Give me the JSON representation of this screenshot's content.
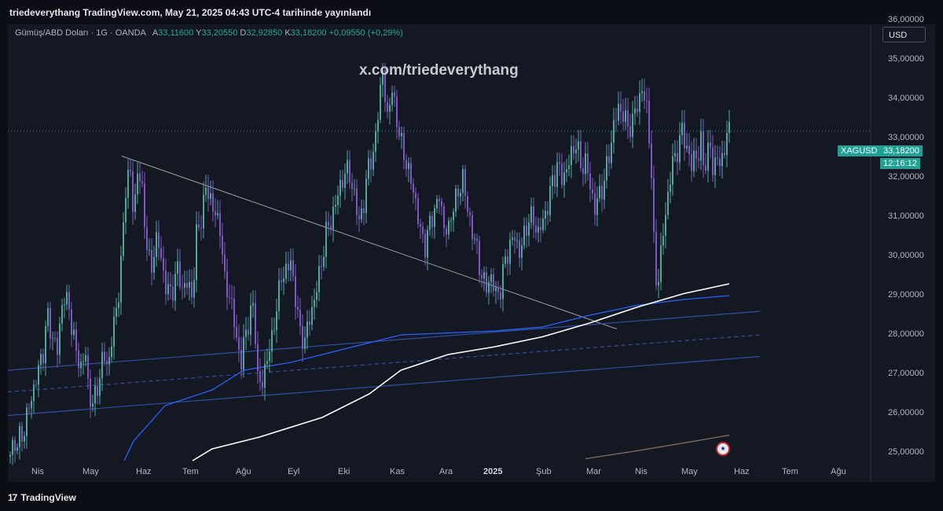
{
  "header": {
    "published_text": "triedeverythang TradingView.com, May 21, 2025 04:43 UTC-4 tarihinde yayınlandı"
  },
  "legend": {
    "title": "Gümüş/ABD Doları · 1G · OANDA",
    "open_key": "A",
    "open": "33,11600",
    "high_key": "Y",
    "high": "33,20550",
    "low_key": "D",
    "low": "32,92850",
    "close_key": "K",
    "close": "33,18200",
    "change": "+0,09550 (+0,29%)"
  },
  "currency_button": "USD",
  "watermark": "x.com/triedeverythang",
  "symbol_tag": "XAGUSD",
  "price_tag": {
    "price": "33,18200",
    "countdown": "12:16:12"
  },
  "footer": {
    "logo": "17",
    "brand": "TradingView"
  },
  "colors": {
    "up": "#4fa89a",
    "down": "#7e57c2",
    "accent": "#26a69a",
    "background": "#141823"
  },
  "chart_data": {
    "type": "candlestick",
    "symbol": "XAGUSD",
    "interval": "1G",
    "y_axis": {
      "tick_labels": [
        "36,00000",
        "35,00000",
        "34,00000",
        "33,00000",
        "32,00000",
        "31,00000",
        "30,00000",
        "29,00000",
        "28,00000",
        "27,00000",
        "26,00000",
        "25,00000"
      ],
      "ylim": [
        24.7,
        35.9
      ]
    },
    "x_axis": {
      "tick_labels": [
        "Nis",
        "May",
        "Haz",
        "Tem",
        "Ağu",
        "Eyl",
        "Eki",
        "Kas",
        "Ara",
        "2025",
        "Şub",
        "Mar",
        "Nis",
        "May",
        "Haz",
        "Tem",
        "Ağu"
      ],
      "bold_labels": [
        "2025"
      ]
    },
    "last_price": 33.182,
    "price_path": [
      [
        0,
        24.9
      ],
      [
        8,
        25.2
      ],
      [
        18,
        25.4
      ],
      [
        25,
        26.0
      ],
      [
        35,
        26.8
      ],
      [
        45,
        27.6
      ],
      [
        50,
        28.5
      ],
      [
        56,
        28.0
      ],
      [
        63,
        27.6
      ],
      [
        70,
        29.0
      ],
      [
        78,
        28.7
      ],
      [
        86,
        27.6
      ],
      [
        93,
        27.2
      ],
      [
        99,
        27.5
      ],
      [
        103,
        26.5
      ],
      [
        109,
        26.2
      ],
      [
        115,
        26.8
      ],
      [
        122,
        27.5
      ],
      [
        128,
        27.2
      ],
      [
        135,
        28.3
      ],
      [
        140,
        28.9
      ],
      [
        145,
        30.0
      ],
      [
        150,
        31.8
      ],
      [
        155,
        32.3
      ],
      [
        160,
        31.0
      ],
      [
        165,
        32.2
      ],
      [
        170,
        31.8
      ],
      [
        176,
        30.5
      ],
      [
        182,
        29.5
      ],
      [
        188,
        30.5
      ],
      [
        193,
        30.2
      ],
      [
        200,
        29.3
      ],
      [
        208,
        29.0
      ],
      [
        215,
        29.7
      ],
      [
        222,
        29.2
      ],
      [
        228,
        29.3
      ],
      [
        235,
        29.0
      ],
      [
        240,
        30.5
      ],
      [
        246,
        31.0
      ],
      [
        252,
        31.7
      ],
      [
        258,
        31.5
      ],
      [
        264,
        31.0
      ],
      [
        270,
        30.8
      ],
      [
        276,
        29.3
      ],
      [
        283,
        29.0
      ],
      [
        290,
        28.0
      ],
      [
        297,
        27.3
      ],
      [
        302,
        28.0
      ],
      [
        308,
        28.5
      ],
      [
        313,
        28.7
      ],
      [
        318,
        27.0
      ],
      [
        323,
        26.6
      ],
      [
        330,
        27.5
      ],
      [
        336,
        27.8
      ],
      [
        342,
        28.8
      ],
      [
        348,
        29.4
      ],
      [
        354,
        29.7
      ],
      [
        360,
        29.8
      ],
      [
        366,
        29.0
      ],
      [
        372,
        28.0
      ],
      [
        378,
        27.9
      ],
      [
        384,
        28.4
      ],
      [
        391,
        29.0
      ],
      [
        398,
        29.7
      ],
      [
        404,
        30.5
      ],
      [
        410,
        30.9
      ],
      [
        416,
        31.2
      ],
      [
        422,
        31.8
      ],
      [
        428,
        32.0
      ],
      [
        434,
        32.3
      ],
      [
        440,
        31.5
      ],
      [
        447,
        31.0
      ],
      [
        453,
        31.2
      ],
      [
        459,
        32.5
      ],
      [
        465,
        32.4
      ],
      [
        471,
        33.8
      ],
      [
        477,
        34.6
      ],
      [
        483,
        33.6
      ],
      [
        489,
        34.2
      ],
      [
        495,
        33.5
      ],
      [
        501,
        32.8
      ],
      [
        507,
        32.4
      ],
      [
        513,
        31.9
      ],
      [
        519,
        31.4
      ],
      [
        525,
        30.6
      ],
      [
        531,
        30.3
      ],
      [
        537,
        30.8
      ],
      [
        543,
        31.2
      ],
      [
        549,
        31.5
      ],
      [
        555,
        30.8
      ],
      [
        561,
        30.6
      ],
      [
        567,
        31.4
      ],
      [
        573,
        31.5
      ],
      [
        579,
        32.1
      ],
      [
        585,
        31.1
      ],
      [
        591,
        30.7
      ],
      [
        597,
        30.1
      ],
      [
        603,
        29.5
      ],
      [
        609,
        29.2
      ],
      [
        615,
        29.5
      ],
      [
        621,
        29.0
      ],
      [
        627,
        29.2
      ],
      [
        633,
        29.9
      ],
      [
        639,
        30.3
      ],
      [
        645,
        30.5
      ],
      [
        651,
        30.1
      ],
      [
        657,
        30.5
      ],
      [
        663,
        31.0
      ],
      [
        669,
        30.9
      ],
      [
        675,
        30.6
      ],
      [
        681,
        30.9
      ],
      [
        687,
        31.3
      ],
      [
        693,
        31.9
      ],
      [
        699,
        32.3
      ],
      [
        705,
        32.0
      ],
      [
        711,
        32.2
      ],
      [
        717,
        32.6
      ],
      [
        723,
        32.9
      ],
      [
        729,
        32.3
      ],
      [
        735,
        32.4
      ],
      [
        741,
        31.8
      ],
      [
        747,
        31.2
      ],
      [
        753,
        31.6
      ],
      [
        759,
        31.9
      ],
      [
        765,
        32.6
      ],
      [
        771,
        33.3
      ],
      [
        777,
        33.8
      ],
      [
        783,
        33.6
      ],
      [
        789,
        33.3
      ],
      [
        795,
        33.4
      ],
      [
        801,
        33.9
      ],
      [
        807,
        34.2
      ],
      [
        813,
        33.8
      ],
      [
        818,
        32.6
      ],
      [
        822,
        30.3
      ],
      [
        826,
        29.2
      ],
      [
        830,
        29.8
      ],
      [
        834,
        30.6
      ],
      [
        838,
        31.3
      ],
      [
        842,
        31.8
      ],
      [
        846,
        32.4
      ],
      [
        850,
        32.6
      ],
      [
        854,
        32.8
      ],
      [
        858,
        33.2
      ],
      [
        862,
        33.0
      ],
      [
        866,
        32.5
      ],
      [
        870,
        32.3
      ],
      [
        874,
        32.7
      ],
      [
        878,
        32.4
      ],
      [
        882,
        32.9
      ],
      [
        886,
        32.3
      ],
      [
        890,
        32.5
      ],
      [
        894,
        32.8
      ],
      [
        898,
        32.1
      ],
      [
        902,
        32.6
      ],
      [
        906,
        32.3
      ],
      [
        910,
        32.6
      ],
      [
        914,
        33.0
      ],
      [
        918,
        33.18
      ]
    ],
    "moving_averages": [
      {
        "color": "#2962ff",
        "path": [
          [
            148,
            24.8
          ],
          [
            160,
            25.3
          ],
          [
            200,
            26.2
          ],
          [
            260,
            26.6
          ],
          [
            300,
            27.1
          ],
          [
            360,
            27.3
          ],
          [
            400,
            27.5
          ],
          [
            460,
            27.8
          ],
          [
            500,
            28.0
          ],
          [
            560,
            28.05
          ],
          [
            620,
            28.1
          ],
          [
            680,
            28.2
          ],
          [
            740,
            28.5
          ],
          [
            800,
            28.75
          ],
          [
            860,
            28.9
          ],
          [
            918,
            29.0
          ]
        ]
      },
      {
        "color": "#ffffff",
        "path": [
          [
            235,
            24.8
          ],
          [
            260,
            25.1
          ],
          [
            320,
            25.4
          ],
          [
            400,
            25.9
          ],
          [
            460,
            26.5
          ],
          [
            500,
            27.1
          ],
          [
            560,
            27.5
          ],
          [
            620,
            27.7
          ],
          [
            680,
            27.95
          ],
          [
            740,
            28.3
          ],
          [
            800,
            28.7
          ],
          [
            860,
            29.05
          ],
          [
            918,
            29.3
          ]
        ]
      },
      {
        "color": "#8d6e63",
        "path": [
          [
            735,
            24.85
          ],
          [
            800,
            25.05
          ],
          [
            860,
            25.25
          ],
          [
            918,
            25.45
          ]
        ]
      }
    ],
    "trendlines": [
      {
        "style": "solid",
        "color": "#9e9e9e",
        "path": [
          [
            145,
            32.55
          ],
          [
            775,
            28.15
          ]
        ]
      },
      {
        "style": "solid",
        "color": "#2f4fa1",
        "path": [
          [
            0,
            27.1
          ],
          [
            957,
            28.6
          ]
        ]
      },
      {
        "style": "dashed",
        "color": "#2f4fa1",
        "path": [
          [
            0,
            26.55
          ],
          [
            957,
            28.0
          ]
        ]
      },
      {
        "style": "solid",
        "color": "#2f4fa1",
        "path": [
          [
            0,
            25.95
          ],
          [
            957,
            27.45
          ]
        ]
      }
    ]
  }
}
